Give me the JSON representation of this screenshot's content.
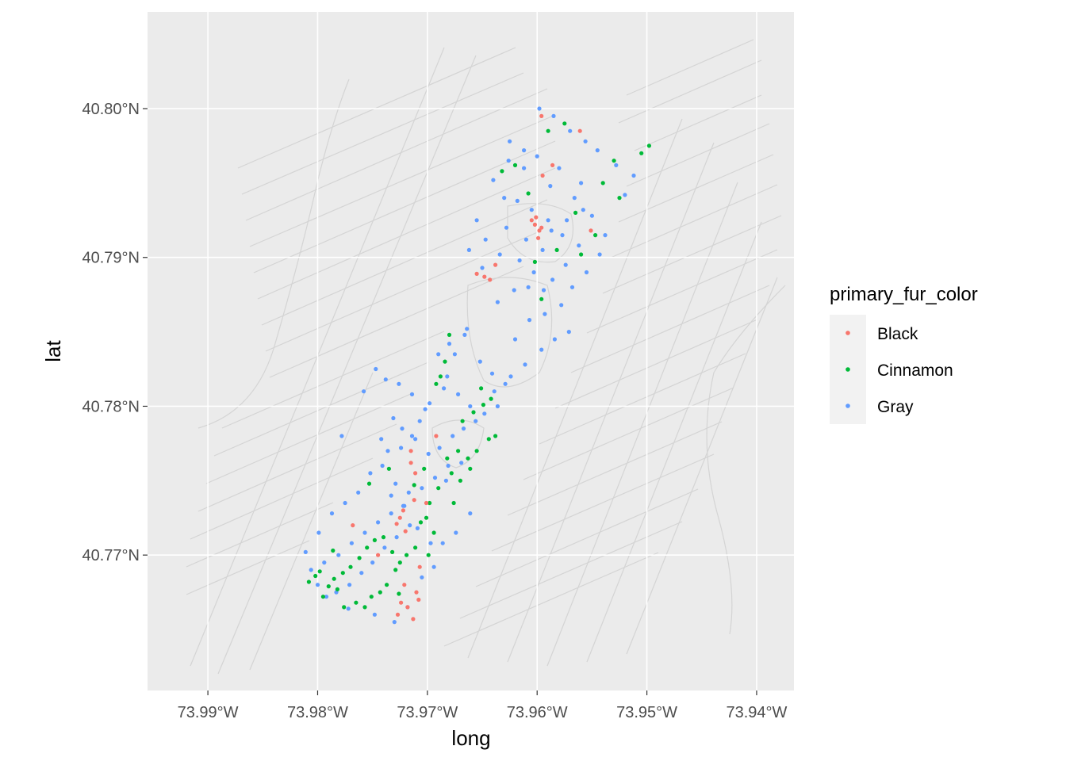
{
  "chart_data": {
    "type": "scatter",
    "title": "",
    "xlabel": "long",
    "ylabel": "lat",
    "xlim": [
      -73.9955,
      -73.9366
    ],
    "ylim": [
      40.7609,
      40.8065
    ],
    "x_ticks": [
      -73.99,
      -73.98,
      -73.97,
      -73.96,
      -73.95,
      -73.94
    ],
    "x_tick_labels": [
      "73.99°W",
      "73.98°W",
      "73.97°W",
      "73.96°W",
      "73.95°W",
      "73.94°W"
    ],
    "y_ticks": [
      40.77,
      40.78,
      40.79,
      40.8
    ],
    "y_tick_labels": [
      "40.77°N",
      "40.78°N",
      "40.79°N",
      "40.80°N"
    ],
    "grid": true,
    "legend_position": "right",
    "legend": {
      "title": "primary_fur_color",
      "entries": [
        "Black",
        "Cinnamon",
        "Gray"
      ]
    },
    "colors": {
      "Black": "#F8766D",
      "Cinnamon": "#00BA38",
      "Gray": "#619CFF",
      "panel": "#EBEBEB",
      "grid": "#FFFFFF",
      "streets": "#D4D4D4"
    },
    "series": [
      {
        "name": "Black",
        "x": [
          -73.9602,
          -73.9598,
          -73.9605,
          -73.9599,
          -73.9601,
          -73.9596,
          -73.9655,
          -73.9648,
          -73.9643,
          -73.9551,
          -73.9638,
          -73.9595,
          -73.9586,
          -73.9561,
          -73.9692,
          -73.9715,
          -73.9722,
          -73.9711,
          -73.9712,
          -73.9725,
          -73.972,
          -73.9728,
          -73.9707,
          -73.9721,
          -73.9727,
          -73.9713,
          -73.9718,
          -73.9708,
          -73.971,
          -73.9724,
          -73.9745,
          -73.9768,
          -73.9715,
          -73.9701,
          -73.9596
        ],
        "y": [
          40.7922,
          40.7918,
          40.7925,
          40.7913,
          40.7927,
          40.792,
          40.7889,
          40.7887,
          40.7885,
          40.7918,
          40.7895,
          40.7955,
          40.7962,
          40.7985,
          40.778,
          40.777,
          40.773,
          40.7755,
          40.7737,
          40.7725,
          40.7716,
          40.7721,
          40.7692,
          40.768,
          40.766,
          40.7657,
          40.7665,
          40.767,
          40.7675,
          40.7668,
          40.77,
          40.772,
          40.7762,
          40.7735,
          40.7995
        ]
      },
      {
        "name": "Cinnamon",
        "x": [
          -73.9505,
          -73.9498,
          -73.9525,
          -73.954,
          -73.9565,
          -73.9582,
          -73.9608,
          -73.9632,
          -73.962,
          -73.9547,
          -73.953,
          -73.959,
          -73.9575,
          -73.9596,
          -73.956,
          -73.9602,
          -73.9642,
          -73.9651,
          -73.9658,
          -73.9668,
          -73.9672,
          -73.9663,
          -73.9644,
          -73.9638,
          -73.9649,
          -73.9661,
          -73.9678,
          -73.969,
          -73.9682,
          -73.9698,
          -73.9701,
          -73.9694,
          -73.9706,
          -73.9711,
          -73.9719,
          -73.9725,
          -73.9732,
          -73.974,
          -73.9748,
          -73.9755,
          -73.9762,
          -73.977,
          -73.9777,
          -73.9785,
          -73.979,
          -73.9795,
          -73.9802,
          -73.9808,
          -73.9776,
          -73.9765,
          -73.9757,
          -73.9743,
          -73.9737,
          -73.9729,
          -73.9712,
          -73.9703,
          -73.9692,
          -73.9684,
          -73.968,
          -73.9688,
          -73.967,
          -73.9676,
          -73.9655,
          -73.9699,
          -73.9726,
          -73.9751,
          -73.9782,
          -73.9798,
          -73.9786,
          -73.9753,
          -73.9735
        ],
        "y": [
          40.797,
          40.7975,
          40.794,
          40.795,
          40.793,
          40.7905,
          40.7943,
          40.7958,
          40.7962,
          40.7915,
          40.7965,
          40.7985,
          40.799,
          40.7872,
          40.7902,
          40.7897,
          40.7805,
          40.7812,
          40.7796,
          40.779,
          40.777,
          40.7765,
          40.7778,
          40.778,
          40.7801,
          40.7758,
          40.7755,
          40.7745,
          40.7765,
          40.7735,
          40.7725,
          40.7715,
          40.7722,
          40.7705,
          40.77,
          40.7695,
          40.7702,
          40.7712,
          40.771,
          40.7705,
          40.7698,
          40.7692,
          40.7688,
          40.7684,
          40.7679,
          40.7672,
          40.7686,
          40.7682,
          40.7665,
          40.7668,
          40.7665,
          40.7675,
          40.768,
          40.769,
          40.7747,
          40.7758,
          40.7815,
          40.783,
          40.7848,
          40.782,
          40.775,
          40.7735,
          40.777,
          40.77,
          40.7674,
          40.7672,
          40.7677,
          40.7689,
          40.7703,
          40.7748,
          40.7758
        ]
      },
      {
        "name": "Gray",
        "x": [
          -73.9598,
          -73.9585,
          -73.957,
          -73.9556,
          -73.9545,
          -73.9528,
          -73.9512,
          -73.952,
          -73.956,
          -73.958,
          -73.96,
          -73.9612,
          -73.9625,
          -73.964,
          -73.963,
          -73.9588,
          -73.9566,
          -73.955,
          -73.9538,
          -73.9543,
          -73.9562,
          -73.9577,
          -73.959,
          -73.9605,
          -73.9618,
          -73.9628,
          -73.961,
          -73.9595,
          -73.9574,
          -73.9555,
          -73.9568,
          -73.9586,
          -73.9603,
          -73.9616,
          -73.9634,
          -73.9647,
          -73.9655,
          -73.9662,
          -73.965,
          -73.9636,
          -73.9621,
          -73.9608,
          -73.9594,
          -73.9578,
          -73.9571,
          -73.9584,
          -73.9596,
          -73.9611,
          -73.9624,
          -73.9639,
          -73.9664,
          -73.9675,
          -73.9682,
          -73.969,
          -73.968,
          -73.9666,
          -73.9652,
          -73.9641,
          -73.9629,
          -73.9636,
          -73.9648,
          -73.9661,
          -73.9672,
          -73.9685,
          -73.9698,
          -73.9707,
          -73.9714,
          -73.9723,
          -73.9731,
          -73.9742,
          -73.9736,
          -73.9724,
          -73.9711,
          -73.9699,
          -73.9689,
          -73.9677,
          -73.9667,
          -73.9656,
          -73.9669,
          -73.9681,
          -73.9693,
          -73.9705,
          -73.9717,
          -73.9729,
          -73.9741,
          -73.9752,
          -73.9763,
          -73.9775,
          -73.9787,
          -73.9799,
          -73.9811,
          -73.9806,
          -73.9794,
          -73.9781,
          -73.9769,
          -73.9757,
          -73.9745,
          -73.9733,
          -73.9722,
          -73.9716,
          -73.9728,
          -73.9739,
          -73.975,
          -73.976,
          -73.9771,
          -73.9783,
          -73.9792,
          -73.98,
          -73.9772,
          -73.9748,
          -73.973,
          -73.9718,
          -73.9705,
          -73.9694,
          -73.9686,
          -73.9674,
          -73.9661,
          -73.9702,
          -73.9714,
          -73.9726,
          -73.9738,
          -73.9747,
          -73.9758,
          -73.9778,
          -73.9733,
          -73.9721,
          -73.9709,
          -73.9697,
          -73.9683,
          -73.962,
          -73.9607,
          -73.9593,
          -73.9612,
          -73.9626,
          -73.9587,
          -73.9573,
          -73.9558
        ],
        "y": [
          40.8,
          40.7995,
          40.7985,
          40.7978,
          40.7972,
          40.7962,
          40.7955,
          40.7942,
          40.795,
          40.796,
          40.7968,
          40.7972,
          40.7978,
          40.7952,
          40.794,
          40.7948,
          40.794,
          40.7928,
          40.7915,
          40.7902,
          40.7908,
          40.7915,
          40.7925,
          40.7932,
          40.7938,
          40.792,
          40.7912,
          40.7905,
          40.7895,
          40.789,
          40.788,
          40.7885,
          40.789,
          40.7898,
          40.7902,
          40.7912,
          40.7925,
          40.7905,
          40.7893,
          40.787,
          40.7878,
          40.788,
          40.7878,
          40.7868,
          40.785,
          40.7845,
          40.7838,
          40.7828,
          40.782,
          40.781,
          40.7852,
          40.7835,
          40.782,
          40.7835,
          40.7842,
          40.7848,
          40.783,
          40.7822,
          40.7815,
          40.78,
          40.7795,
          40.78,
          40.7808,
          40.7812,
          40.7802,
          40.779,
          40.778,
          40.7785,
          40.7792,
          40.7778,
          40.777,
          40.7772,
          40.7778,
          40.7768,
          40.7772,
          40.778,
          40.7785,
          40.779,
          40.7762,
          40.776,
          40.7752,
          40.7745,
          40.7742,
          40.7748,
          40.776,
          40.7755,
          40.7742,
          40.7735,
          40.7728,
          40.7715,
          40.7702,
          40.769,
          40.7695,
          40.77,
          40.7708,
          40.7715,
          40.7722,
          40.7728,
          40.7733,
          40.772,
          40.7712,
          40.7705,
          40.7695,
          40.7688,
          40.768,
          40.7675,
          40.7672,
          40.768,
          40.7664,
          40.766,
          40.7655,
          40.7665,
          40.7685,
          40.7692,
          40.7708,
          40.7715,
          40.7728,
          40.7798,
          40.7808,
          40.7815,
          40.7818,
          40.7825,
          40.781,
          40.778,
          40.774,
          40.7733,
          40.7718,
          40.7708,
          40.775,
          40.7845,
          40.7858,
          40.7862,
          40.796,
          40.7965,
          40.7918,
          40.7925,
          40.7932
        ]
      }
    ]
  }
}
